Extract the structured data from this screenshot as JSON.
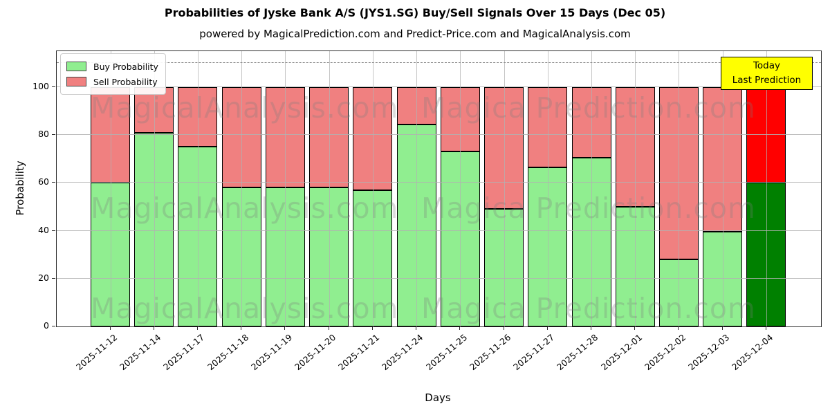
{
  "title": "Probabilities of Jyske Bank A/S (JYS1.SG) Buy/Sell Signals Over 15 Days (Dec 05)",
  "subtitle": "powered by MagicalPrediction.com and Predict-Price.com and MagicalAnalysis.com",
  "legend": {
    "items": [
      {
        "label": "Buy Probability",
        "color": "#90EE90"
      },
      {
        "label": "Sell Probability",
        "color": "#F08080"
      }
    ]
  },
  "annotation_box": {
    "line1": "Today",
    "line2": "Last Prediction",
    "bg_color": "#FFFF00"
  },
  "watermarks": {
    "left_text": "MagicalAnalysis.com",
    "right_text": "Magica Prediction.com"
  },
  "colors": {
    "buy": "#90EE90",
    "sell": "#F08080",
    "today_buy": "#008000",
    "today_sell": "#FF0000",
    "annotation_bg": "#FFFF00",
    "grid": "#B0B0B0",
    "bar_edge": "#000000"
  },
  "chart_data": {
    "type": "bar",
    "stacked": true,
    "title": "Probabilities of Jyske Bank A/S (JYS1.SG) Buy/Sell Signals Over 15 Days (Dec 05)",
    "xlabel": "Days",
    "ylabel": "Probability",
    "categories": [
      "2025-11-12",
      "2025-11-14",
      "2025-11-17",
      "2025-11-18",
      "2025-11-19",
      "2025-11-20",
      "2025-11-21",
      "2025-11-24",
      "2025-11-25",
      "2025-11-26",
      "2025-11-27",
      "2025-11-28",
      "2025-12-01",
      "2025-12-02",
      "2025-12-03",
      "2025-12-04"
    ],
    "series": [
      {
        "name": "Buy Probability",
        "color": "#90EE90",
        "values": [
          60,
          81,
          75,
          58,
          58,
          58,
          57,
          84.5,
          73,
          49,
          66.5,
          70.5,
          50,
          28,
          39.5,
          60
        ]
      },
      {
        "name": "Sell Probability",
        "color": "#F08080",
        "values": [
          40,
          19,
          25,
          42,
          42,
          42,
          43,
          15.5,
          27,
          51,
          33.5,
          29.5,
          50,
          72,
          60.5,
          40
        ]
      }
    ],
    "today_bar": {
      "category": "2025-12-04",
      "buy_color": "#008000",
      "sell_color": "#FF0000"
    },
    "yticks": [
      0,
      20,
      40,
      60,
      80,
      100
    ],
    "ylim": [
      0,
      115
    ],
    "dashed_hline": 110,
    "grid": true,
    "legend_position": "upper left"
  }
}
